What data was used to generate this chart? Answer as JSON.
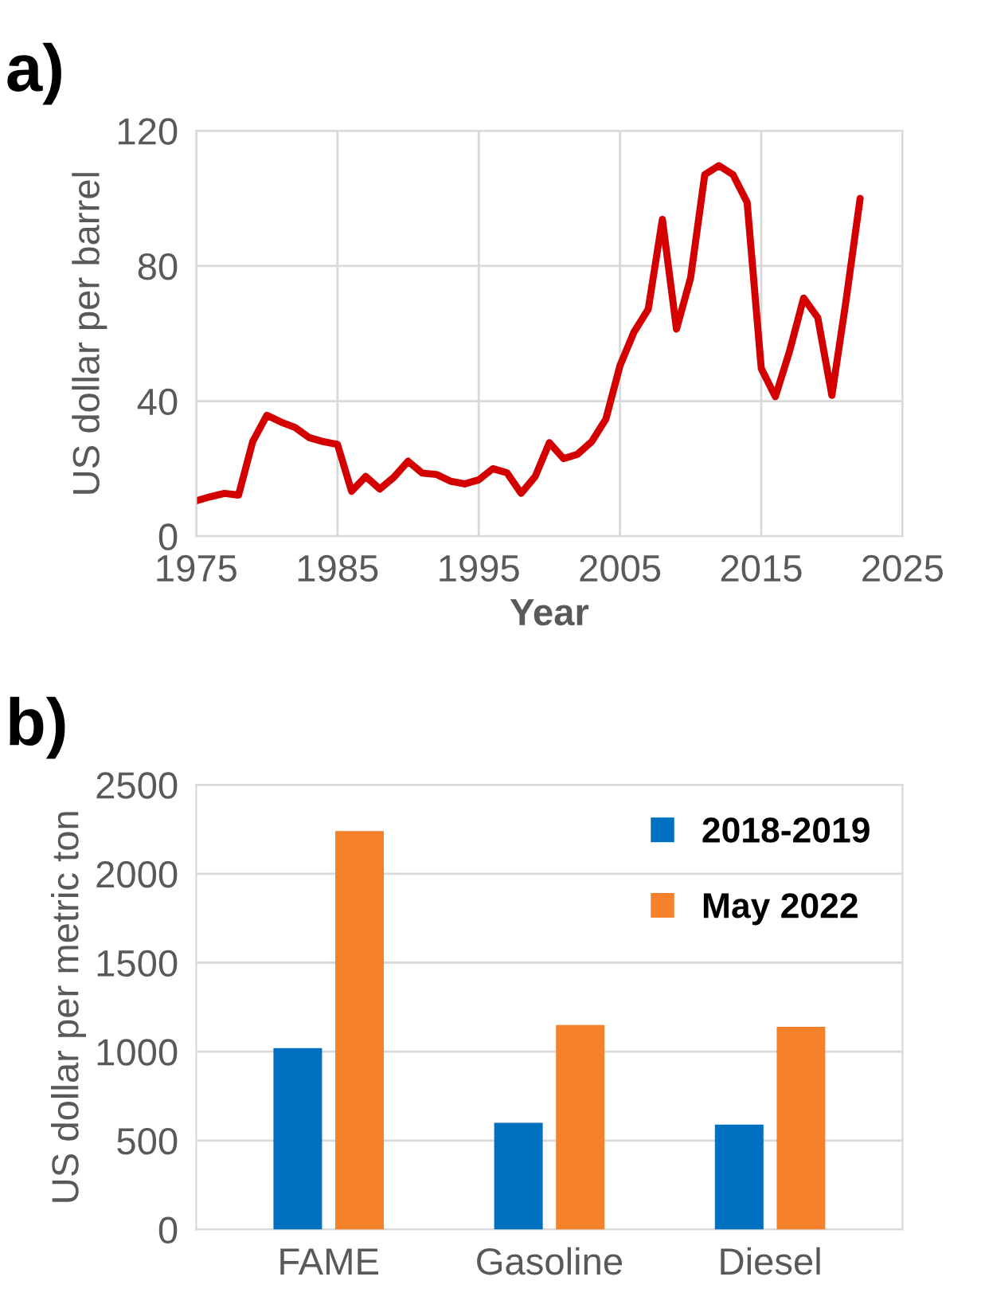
{
  "chart_data": [
    {
      "type": "line",
      "title": "a)",
      "xlabel": "Year",
      "ylabel": "US dollar per barrel",
      "x": [
        1975,
        1976,
        1977,
        1978,
        1979,
        1980,
        1981,
        1982,
        1983,
        1984,
        1985,
        1986,
        1987,
        1988,
        1989,
        1990,
        1991,
        1992,
        1993,
        1994,
        1995,
        1996,
        1997,
        1998,
        1999,
        2000,
        2001,
        2002,
        2003,
        2004,
        2005,
        2006,
        2007,
        2008,
        2009,
        2010,
        2011,
        2012,
        2013,
        2014,
        2015,
        2016,
        2017,
        2018,
        2019,
        2020,
        2021,
        2022
      ],
      "series": [
        {
          "color": "#d40000",
          "values": [
            10.5,
            11.7,
            12.7,
            12.2,
            28,
            35.8,
            33.8,
            32.2,
            29.2,
            28,
            27.2,
            13.3,
            17.7,
            14,
            17.5,
            22.2,
            18.7,
            18.3,
            16.3,
            15.5,
            16.7,
            20,
            18.8,
            12.7,
            17.7,
            27.7,
            23,
            24.3,
            28,
            34.7,
            50.5,
            60.5,
            67.2,
            93.8,
            61.3,
            76.5,
            107,
            109.7,
            107,
            98.8,
            49.7,
            41.3,
            54.7,
            70.5,
            64.7,
            41.7,
            69.7,
            100
          ]
        }
      ],
      "xlim": [
        1975,
        2025
      ],
      "xticks": [
        1975,
        1985,
        1995,
        2005,
        2015,
        2025
      ],
      "ylim": [
        0,
        120
      ],
      "yticks": [
        0,
        40,
        80,
        120
      ],
      "grid": true,
      "marker": "none",
      "line_style": "solid"
    },
    {
      "type": "bar",
      "title": "b)",
      "ylabel": "US dollar per metric ton",
      "categories": [
        "FAME",
        "Gasoline",
        "Diesel"
      ],
      "series": [
        {
          "name": "2018-2019",
          "color": "#0070c0",
          "values": [
            1020,
            600,
            590
          ]
        },
        {
          "name": "May 2022",
          "color": "#f5812a",
          "values": [
            2240,
            1150,
            1140
          ]
        }
      ],
      "ylim": [
        0,
        2500
      ],
      "yticks": [
        0,
        500,
        1000,
        1500,
        2000,
        2500
      ],
      "grid": "y",
      "legend": "top right"
    }
  ]
}
